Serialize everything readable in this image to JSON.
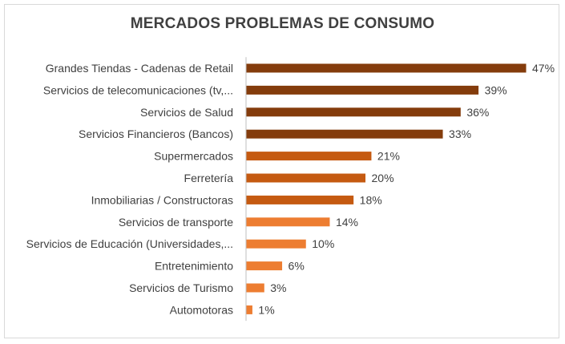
{
  "chart_data": {
    "type": "bar",
    "orientation": "horizontal",
    "title": "MERCADOS PROBLEMAS DE CONSUMO",
    "xlabel": "",
    "ylabel": "",
    "xlim": [
      0,
      50
    ],
    "grid": false,
    "legend": "none",
    "categories": [
      "Grandes Tiendas - Cadenas de Retail",
      "Servicios de telecomunicaciones (tv,...",
      "Servicios de Salud",
      "Servicios Financieros (Bancos)",
      "Supermercados",
      "Ferretería",
      "Inmobiliarias / Constructoras",
      "Servicios de transporte",
      "Servicios de Educación (Universidades,...",
      "Entretenimiento",
      "Servicios de Turismo",
      "Automotoras"
    ],
    "values": [
      47,
      39,
      36,
      33,
      21,
      20,
      18,
      14,
      10,
      6,
      3,
      1
    ],
    "value_labels": [
      "47%",
      "39%",
      "36%",
      "33%",
      "21%",
      "20%",
      "18%",
      "14%",
      "10%",
      "6%",
      "3%",
      "1%"
    ],
    "colors": [
      "#843c0c",
      "#843c0c",
      "#843c0c",
      "#843c0c",
      "#c55a11",
      "#c55a11",
      "#c55a11",
      "#ed7d31",
      "#ed7d31",
      "#ed7d31",
      "#ed7d31",
      "#ed7d31"
    ]
  }
}
